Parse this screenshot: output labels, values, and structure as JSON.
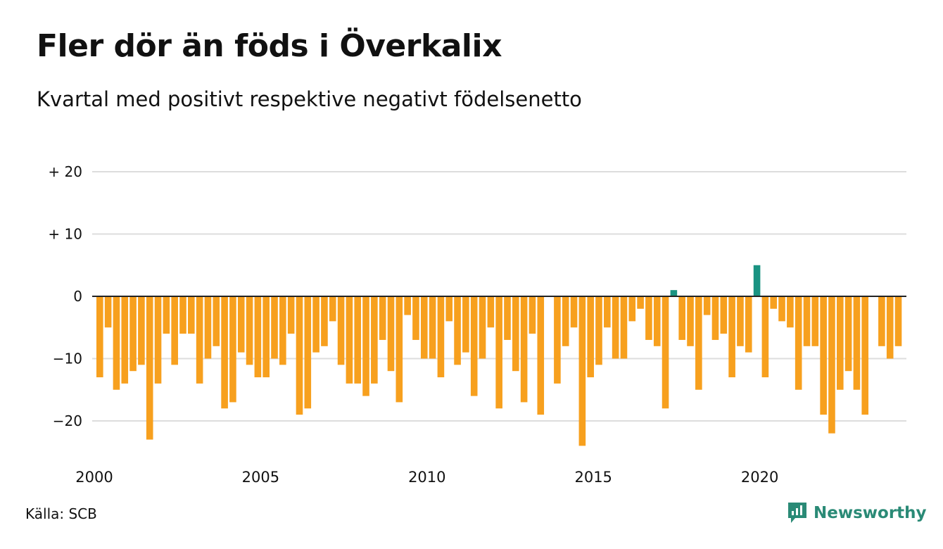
{
  "header": {
    "title": "Fler dör än föds i Överkalix",
    "subtitle": "Kvartal med positivt respektive negativt födelsenetto"
  },
  "footer": {
    "source": "Källa: SCB",
    "brand": "Newsworthy"
  },
  "colors": {
    "negative": "#f7a01e",
    "positive": "#1a9382",
    "grid": "#dddddd",
    "zero_line": "#222222",
    "brand": "#2a8a76"
  },
  "chart_data": {
    "type": "bar",
    "x_tick_labels": [
      "2000",
      "2005",
      "2010",
      "2015",
      "2020"
    ],
    "y_ticks": [
      20,
      10,
      0,
      -10,
      -20
    ],
    "y_tick_labels": [
      "+ 20",
      "+ 10",
      "0",
      "−10",
      "−20"
    ],
    "ylim": [
      -25,
      20
    ],
    "grid": true,
    "x_start": "2000 Q1",
    "values": [
      -13,
      -5,
      -15,
      -14,
      -12,
      -11,
      -23,
      -14,
      -6,
      -11,
      -6,
      -6,
      -14,
      -10,
      -8,
      -18,
      -17,
      -9,
      -11,
      -13,
      -13,
      -10,
      -11,
      -6,
      -19,
      -18,
      -9,
      -8,
      -4,
      -11,
      -14,
      -14,
      -16,
      -14,
      -7,
      -12,
      -17,
      -3,
      -7,
      -10,
      -10,
      -13,
      -4,
      -11,
      -9,
      -16,
      -10,
      -5,
      -18,
      -7,
      -12,
      -17,
      -6,
      -19,
      0,
      -14,
      -8,
      -5,
      -24,
      -13,
      -11,
      -5,
      -10,
      -10,
      -4,
      -2,
      -7,
      -8,
      -18,
      1,
      -7,
      -8,
      -15,
      -3,
      -7,
      -6,
      -13,
      -8,
      -9,
      5,
      -13,
      -2,
      -4,
      -5,
      -15,
      -8,
      -8,
      -19,
      -22,
      -15,
      -12,
      -15,
      -19,
      0,
      -8,
      -10,
      -8
    ]
  }
}
